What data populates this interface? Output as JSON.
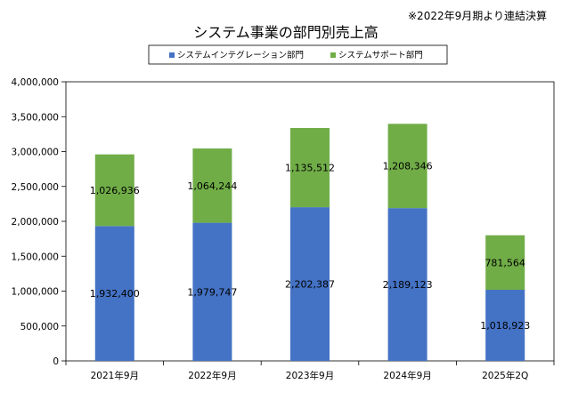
{
  "note": "※2022年9月期より連結決算",
  "chart_data": {
    "type": "bar",
    "stacked": true,
    "title": "システム事業の部門別売上高",
    "categories": [
      "2021年9月",
      "2022年9月",
      "2023年9月",
      "2024年9月",
      "2025年2Q"
    ],
    "series": [
      {
        "name": "システムインテグレーション部門",
        "color": "#4472C4",
        "values": [
          1932400,
          1979747,
          2202387,
          2189123,
          1018923
        ]
      },
      {
        "name": "システムサポート部門",
        "color": "#70AD47",
        "values": [
          1026936,
          1064244,
          1135512,
          1208346,
          781564
        ]
      }
    ],
    "data_labels": [
      [
        "1,932,400",
        "1,979,747",
        "2,202,387",
        "2,189,123",
        "1,018,923"
      ],
      [
        "1,026,936",
        "1,064,244",
        "1,135,512",
        "1,208,346",
        "781,564"
      ]
    ],
    "ylim": [
      0,
      4000000
    ],
    "yticks": [
      0,
      500000,
      1000000,
      1500000,
      2000000,
      2500000,
      3000000,
      3500000,
      4000000
    ],
    "ytick_labels": [
      "0",
      "500,000",
      "1,000,000",
      "1,500,000",
      "2,000,000",
      "2,500,000",
      "3,000,000",
      "3,500,000",
      "4,000,000"
    ],
    "grid": false,
    "legend": "top"
  }
}
